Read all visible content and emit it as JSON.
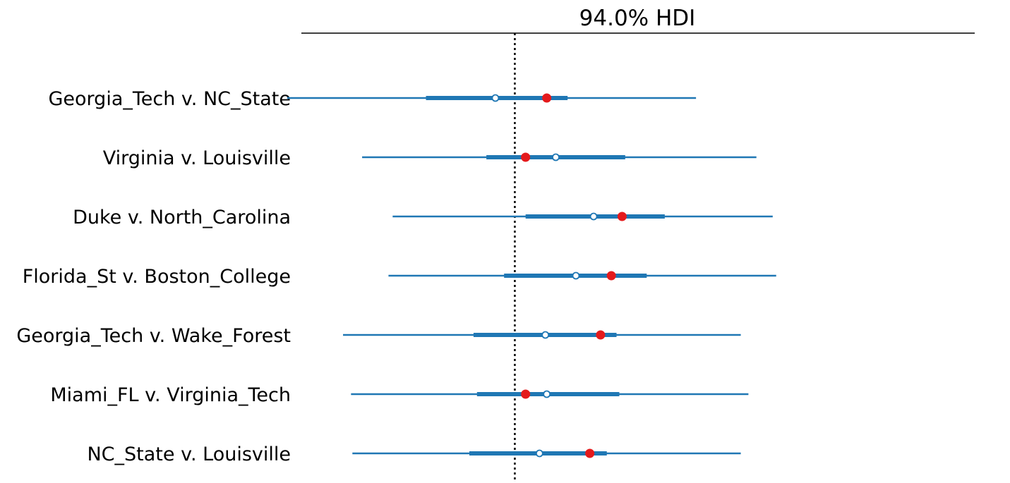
{
  "chart_data": {
    "type": "forest",
    "title": "94.0% HDI",
    "xlabel": "",
    "ylabel": "",
    "xlim": [
      -0.615,
      1.325
    ],
    "reference_line": {
      "x": 0,
      "style": "dotted"
    },
    "series_colors": {
      "interval": "#1f77b4",
      "median_point": "#ffffff",
      "observed_point": "#e41a1c"
    },
    "rows": [
      {
        "label": "Georgia_Tech v.  NC_State",
        "hdi_low": -0.656,
        "iqr_low": -0.256,
        "median": -0.056,
        "iqr_high": 0.152,
        "hdi_high": 0.522,
        "observed": 0.092
      },
      {
        "label": "Virginia v.  Louisville",
        "hdi_low": -0.44,
        "iqr_low": -0.082,
        "median": 0.118,
        "iqr_high": 0.318,
        "hdi_high": 0.696,
        "observed": 0.031
      },
      {
        "label": "Duke v.  North_Carolina",
        "hdi_low": -0.352,
        "iqr_low": 0.031,
        "median": 0.227,
        "iqr_high": 0.432,
        "hdi_high": 0.743,
        "observed": 0.309
      },
      {
        "label": "Florida_St v.  Boston_College",
        "hdi_low": -0.364,
        "iqr_low": -0.031,
        "median": 0.176,
        "iqr_high": 0.38,
        "hdi_high": 0.753,
        "observed": 0.278
      },
      {
        "label": "Georgia_Tech v.  Wake_Forest",
        "hdi_low": -0.495,
        "iqr_low": -0.119,
        "median": 0.088,
        "iqr_high": 0.293,
        "hdi_high": 0.651,
        "observed": 0.247
      },
      {
        "label": "Miami_FL v.  Virginia_Tech",
        "hdi_low": -0.472,
        "iqr_low": -0.109,
        "median": 0.092,
        "iqr_high": 0.301,
        "hdi_high": 0.673,
        "observed": 0.031
      },
      {
        "label": "NC_State v.  Louisville",
        "hdi_low": -0.468,
        "iqr_low": -0.131,
        "median": 0.071,
        "iqr_high": 0.265,
        "hdi_high": 0.651,
        "observed": 0.216
      }
    ]
  }
}
